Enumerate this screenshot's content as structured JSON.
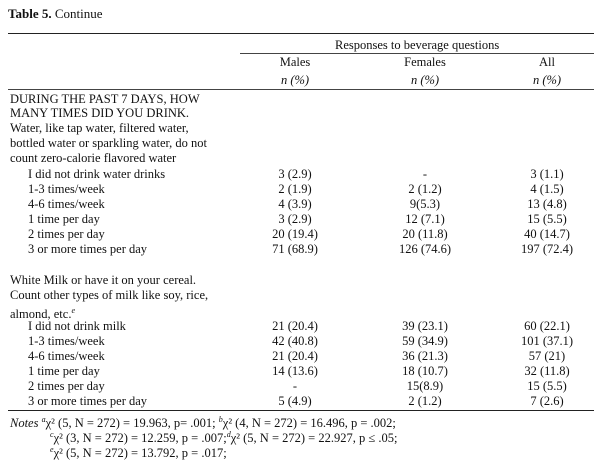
{
  "title": {
    "label": "Table 5.",
    "suffix": "Continue"
  },
  "header": {
    "group": "Responses to beverage questions",
    "columns": [
      "Males",
      "Females",
      "All"
    ],
    "subheads": [
      "n (%)",
      "n (%)",
      "n (%)"
    ]
  },
  "section1": {
    "lines": [
      "DURING THE PAST 7 DAYS, HOW",
      "MANY TIMES DID YOU DRINK.",
      "Water, like tap water, filtered water,",
      "bottled water or sparkling water, do not",
      "count zero-calorie flavored water"
    ],
    "rows": [
      {
        "label": "I did not drink water drinks",
        "males": "3 (2.9)",
        "females": "-",
        "all": "3 (1.1)"
      },
      {
        "label": "1-3 times/week",
        "males": "2 (1.9)",
        "females": "2 (1.2)",
        "all": "4 (1.5)"
      },
      {
        "label": "4-6 times/week",
        "males": "4 (3.9)",
        "females": "9(5.3)",
        "all": "13 (4.8)"
      },
      {
        "label": "1 time per day",
        "males": "3 (2.9)",
        "females": "12 (7.1)",
        "all": "15 (5.5)"
      },
      {
        "label": "2 times per day",
        "males": "20 (19.4)",
        "females": "20 (11.8)",
        "all": "40 (14.7)"
      },
      {
        "label": "3 or more times per day",
        "males": "71 (68.9)",
        "females": "126 (74.6)",
        "all": "197 (72.4)"
      }
    ]
  },
  "section2": {
    "lines": [
      "White Milk or have it on your cereal.",
      "Count other types of milk like soy, rice,",
      "almond, etc."
    ],
    "sup": "e",
    "rows": [
      {
        "label": "I did not drink milk",
        "males": "21 (20.4)",
        "females": "39 (23.1)",
        "all": "60 (22.1)"
      },
      {
        "label": "1-3 times/week",
        "males": "42 (40.8)",
        "females": "59 (34.9)",
        "all": "101 (37.1)"
      },
      {
        "label": "4-6 times/week",
        "males": "21 (20.4)",
        "females": "36 (21.3)",
        "all": "57 (21)"
      },
      {
        "label": "1 time per day",
        "males": "14 (13.6)",
        "females": "18 (10.7)",
        "all": "32 (11.8)"
      },
      {
        "label": "2 times per day",
        "males": "-",
        "females": "15(8.9)",
        "all": "15 (5.5)"
      },
      {
        "label": "3 or more times per day",
        "males": "5 (4.9)",
        "females": "2 (1.2)",
        "all": "7 (2.6)"
      }
    ]
  },
  "notes": {
    "label": "Notes",
    "line1": {
      "a_sup": "a",
      "a_text": "χ² (5, N = 272) = 19.963, p= .001;",
      "b_sup": "b",
      "b_text": "χ² (4, N = 272) = 16.496, p = .002;"
    },
    "line2": {
      "c_sup": "c",
      "c_text": "χ² (3, N = 272) = 12.259, p = .007;",
      "d_sup": "d",
      "d_text": "χ² (5, N = 272) = 22.927, p ≤ .05;"
    },
    "line3": {
      "e_sup": "e",
      "e_text": "χ² (5, N = 272) = 13.792, p = .017;"
    }
  }
}
